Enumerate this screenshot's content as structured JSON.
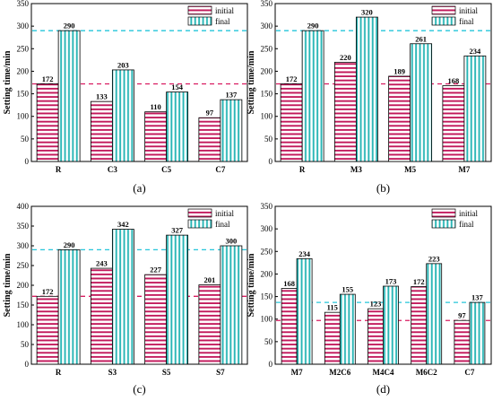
{
  "colors": {
    "initial_stripe": "#c2185b",
    "final_stripe": "#26b5b5",
    "initial_ref": "#d81b60",
    "final_ref": "#26c6da",
    "axis": "#000000"
  },
  "legend": {
    "initial": "initial",
    "final": "final"
  },
  "chart_data": [
    {
      "type": "bar",
      "panel_label": "(a)",
      "ylabel": "Setting time/min",
      "ylim": [
        0,
        350
      ],
      "yticks": [
        0,
        50,
        100,
        150,
        200,
        250,
        300,
        350
      ],
      "categories": [
        "R",
        "C3",
        "C5",
        "C7"
      ],
      "series": [
        {
          "name": "initial",
          "values": [
            172,
            133,
            110,
            97
          ]
        },
        {
          "name": "final",
          "values": [
            290,
            203,
            154,
            137
          ]
        }
      ],
      "reference_lines": {
        "initial": 172,
        "final": 290
      },
      "legend_position": "top-right",
      "grid": false
    },
    {
      "type": "bar",
      "panel_label": "(b)",
      "ylabel": "Setting time/min",
      "ylim": [
        0,
        350
      ],
      "yticks": [
        0,
        50,
        100,
        150,
        200,
        250,
        300,
        350
      ],
      "categories": [
        "R",
        "M3",
        "M5",
        "M7"
      ],
      "series": [
        {
          "name": "initial",
          "values": [
            172,
            220,
            189,
            168
          ]
        },
        {
          "name": "final",
          "values": [
            290,
            320,
            261,
            234
          ]
        }
      ],
      "reference_lines": {
        "initial": 172,
        "final": 290
      },
      "legend_position": "top-right",
      "grid": false
    },
    {
      "type": "bar",
      "panel_label": "(c)",
      "ylabel": "Setting time/min",
      "ylim": [
        0,
        400
      ],
      "yticks": [
        0,
        50,
        100,
        150,
        200,
        250,
        300,
        350,
        400
      ],
      "categories": [
        "R",
        "S3",
        "S5",
        "S7"
      ],
      "series": [
        {
          "name": "initial",
          "values": [
            172,
            243,
            227,
            201
          ]
        },
        {
          "name": "final",
          "values": [
            290,
            342,
            327,
            300
          ]
        }
      ],
      "reference_lines": {
        "initial": 172,
        "final": 290
      },
      "legend_position": "top-right",
      "grid": false
    },
    {
      "type": "bar",
      "panel_label": "(d)",
      "ylabel": "Setting time/min",
      "ylim": [
        0,
        350
      ],
      "yticks": [
        0,
        50,
        100,
        150,
        200,
        250,
        300,
        350
      ],
      "categories": [
        "M7",
        "M2C6",
        "M4C4",
        "M6C2",
        "C7"
      ],
      "series": [
        {
          "name": "initial",
          "values": [
            168,
            115,
            123,
            172,
            97
          ]
        },
        {
          "name": "final",
          "values": [
            234,
            155,
            173,
            223,
            137
          ]
        }
      ],
      "reference_lines": {
        "initial": 97,
        "final": 137
      },
      "legend_position": "top-right",
      "grid": false
    }
  ]
}
